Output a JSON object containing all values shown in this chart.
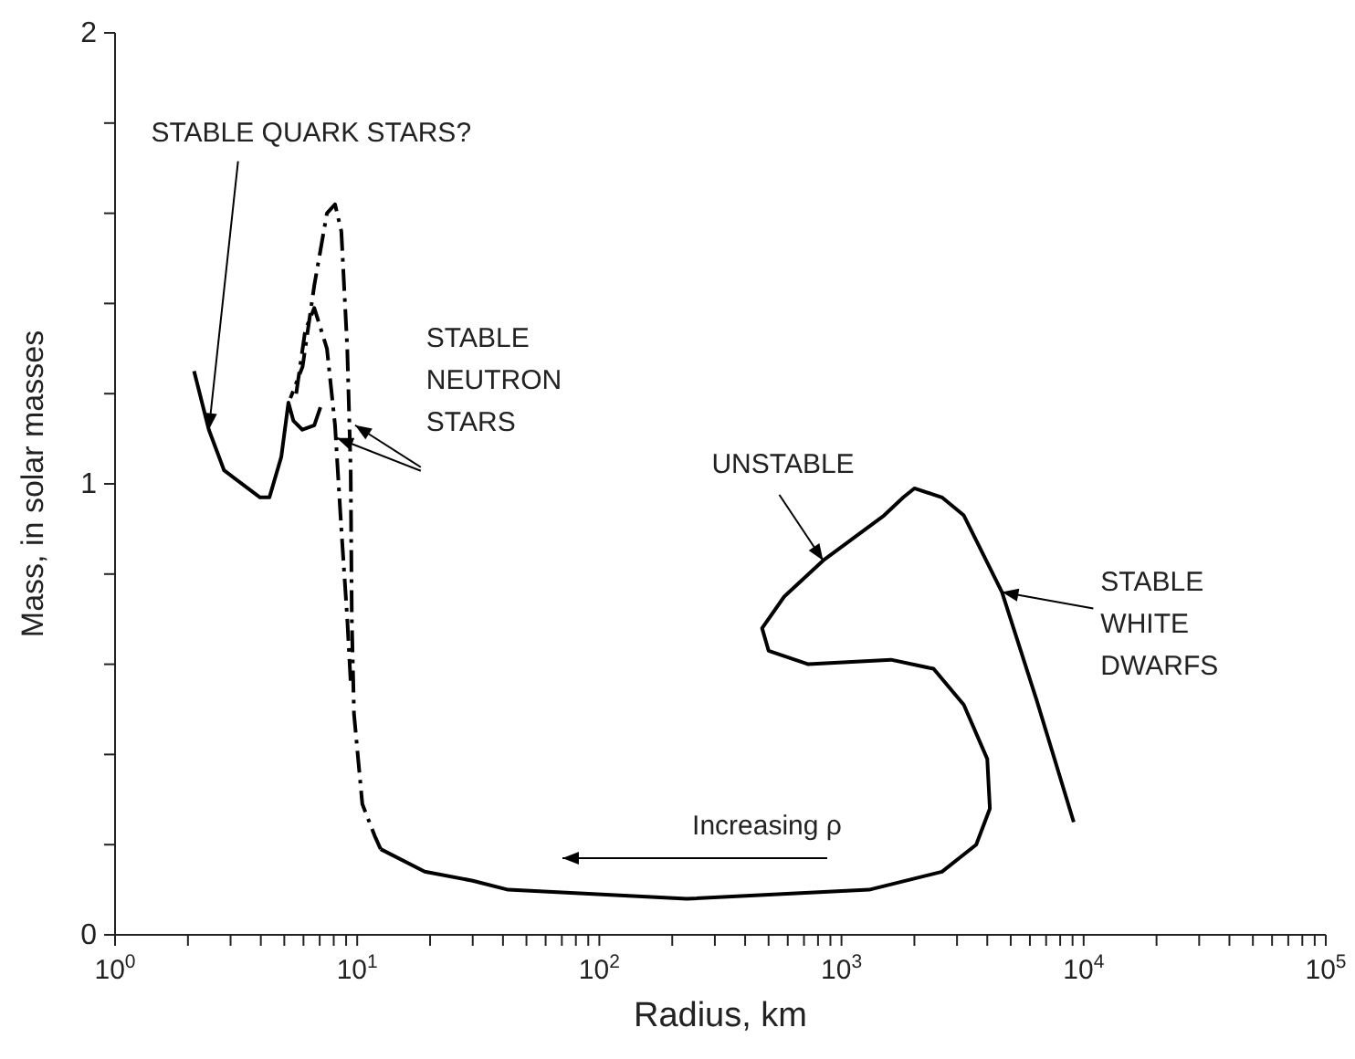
{
  "chart_data": {
    "type": "line",
    "xlabel": "Radius, km",
    "ylabel": "Mass, in solar masses",
    "log": "x",
    "xlim": [
      1,
      100000
    ],
    "ylim": [
      0,
      2
    ],
    "xticks": [
      {
        "value": 1,
        "label": "10$^{0}$"
      },
      {
        "value": 2,
        "label": null
      },
      {
        "value": 3,
        "label": null
      },
      {
        "value": 4,
        "label": null
      },
      {
        "value": 5,
        "label": null
      },
      {
        "value": 6,
        "label": null
      },
      {
        "value": 7,
        "label": null
      },
      {
        "value": 8,
        "label": null
      },
      {
        "value": 9,
        "label": null
      },
      {
        "value": 10,
        "label": "10$^{1}$"
      },
      {
        "value": 20,
        "label": null
      },
      {
        "value": 30,
        "label": null
      },
      {
        "value": 40,
        "label": null
      },
      {
        "value": 50,
        "label": null
      },
      {
        "value": 60,
        "label": null
      },
      {
        "value": 70,
        "label": null
      },
      {
        "value": 80,
        "label": null
      },
      {
        "value": 90,
        "label": null
      },
      {
        "value": 100,
        "label": "10$^{2}$"
      },
      {
        "value": 200,
        "label": null
      },
      {
        "value": 300,
        "label": null
      },
      {
        "value": 400,
        "label": null
      },
      {
        "value": 500,
        "label": null
      },
      {
        "value": 600,
        "label": null
      },
      {
        "value": 700,
        "label": null
      },
      {
        "value": 800,
        "label": null
      },
      {
        "value": 900,
        "label": null
      },
      {
        "value": 1000,
        "label": "10$^{3}$"
      },
      {
        "value": 2000,
        "label": null
      },
      {
        "value": 3000,
        "label": null
      },
      {
        "value": 4000,
        "label": null
      },
      {
        "value": 5000,
        "label": null
      },
      {
        "value": 6000,
        "label": null
      },
      {
        "value": 7000,
        "label": null
      },
      {
        "value": 8000,
        "label": null
      },
      {
        "value": 9000,
        "label": null
      },
      {
        "value": 10000,
        "label": "10$^{4}$"
      },
      {
        "value": 20000,
        "label": null
      },
      {
        "value": 30000,
        "label": null
      },
      {
        "value": 40000,
        "label": null
      },
      {
        "value": 50000,
        "label": null
      },
      {
        "value": 60000,
        "label": null
      },
      {
        "value": 70000,
        "label": null
      },
      {
        "value": 80000,
        "label": null
      },
      {
        "value": 90000,
        "label": null
      },
      {
        "value": 100000,
        "label": "10$^{5}$"
      }
    ],
    "yticks": [
      0,
      {
        "value": 0.2,
        "label": null
      },
      {
        "value": 0.4,
        "label": null
      },
      {
        "value": 0.6,
        "label": null
      },
      {
        "value": 0.8,
        "label": null
      },
      1,
      {
        "value": 1.2,
        "label": null
      },
      {
        "value": 1.4,
        "label": null
      },
      {
        "value": 1.6,
        "label": null
      },
      {
        "value": 1.8,
        "label": null
      },
      2
    ],
    "grid": false,
    "legend": false,
    "marker": "none",
    "series": [
      {
        "color": "#000000",
        "line_style": "solid",
        "x": [
          9100,
          6400,
          4600,
          3200,
          2600,
          2000,
          1800,
          1500,
          840,
          580,
          470,
          500,
          730,
          1600,
          2400,
          3200,
          4000,
          4100,
          3600,
          2600,
          1300,
          230,
          42,
          30,
          19,
          12.5
        ],
        "values": [
          0.25,
          0.52,
          0.76,
          0.93,
          0.97,
          0.99,
          0.97,
          0.93,
          0.83,
          0.75,
          0.68,
          0.63,
          0.6,
          0.61,
          0.59,
          0.51,
          0.39,
          0.28,
          0.2,
          0.14,
          0.1,
          0.08,
          0.1,
          0.12,
          0.14,
          0.19
        ]
      },
      {
        "color": "#000000",
        "line_style": "dashed",
        "x": [
          12.5,
          11.8,
          10.5,
          9.7,
          9.5,
          9.4,
          9.1,
          8.6,
          8.1,
          7.5,
          6.65,
          5.95,
          5.3
        ],
        "values": [
          0.19,
          0.22,
          0.29,
          0.49,
          0.7,
          1.03,
          1.3,
          1.56,
          1.62,
          1.6,
          1.44,
          1.26,
          1.19
        ]
      },
      {
        "color": "#000000",
        "line_style": "dashed",
        "x": [
          5.6,
          6.1,
          6.65,
          7.5,
          8.1,
          8.6,
          9.1,
          9.4
        ],
        "values": [
          1.2,
          1.34,
          1.39,
          1.3,
          1.13,
          0.9,
          0.7,
          0.56
        ]
      },
      {
        "color": "#000000",
        "line_style": "solid",
        "x": [
          2.12,
          2.44,
          2.82,
          3.97,
          4.34,
          4.86,
          5.2,
          5.45,
          5.94,
          6.65,
          7.05
        ],
        "values": [
          1.25,
          1.12,
          1.03,
          0.97,
          0.97,
          1.06,
          1.18,
          1.14,
          1.12,
          1.13,
          1.17
        ]
      }
    ],
    "annotations": [
      {
        "text": "STABLE NEUTRON STARS",
        "x": 9.8,
        "y": 1.13
      },
      {
        "text": "UNSTABLE",
        "x": 840,
        "y": 0.83
      },
      {
        "text": "STABLE QUARK STARS?",
        "x": 2.44,
        "y": 1.12
      },
      {
        "text": "STABLE WHITE DWARFS",
        "x": 4600,
        "y": 0.76
      },
      "Increasing ρ"
    ]
  }
}
